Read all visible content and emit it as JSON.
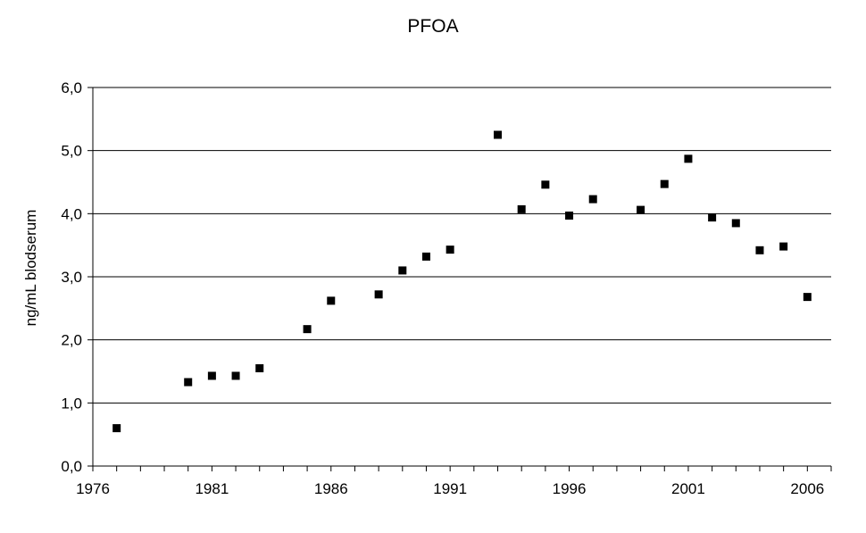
{
  "chart_data": {
    "type": "scatter",
    "title": "PFOA",
    "xlabel": "",
    "ylabel": "ng/mL  blodserum",
    "xlim": [
      1976,
      2007
    ],
    "ylim": [
      0,
      6
    ],
    "x_ticks": [
      1976,
      1981,
      1986,
      1991,
      1996,
      2001,
      2006
    ],
    "x_tick_labels": [
      "1976",
      "1981",
      "1986",
      "1991",
      "1996",
      "2001",
      "2006"
    ],
    "y_ticks": [
      0,
      1,
      2,
      3,
      4,
      5,
      6
    ],
    "y_tick_labels": [
      "0,0",
      "1,0",
      "2,0",
      "3,0",
      "4,0",
      "5,0",
      "6,0"
    ],
    "grid": "horizontal",
    "legend": "none",
    "marker": "square",
    "marker_color": "#000000",
    "series": [
      {
        "points": [
          {
            "x": 1977,
            "y": 0.6
          },
          {
            "x": 1980,
            "y": 1.33
          },
          {
            "x": 1981,
            "y": 1.43
          },
          {
            "x": 1982,
            "y": 1.43
          },
          {
            "x": 1983,
            "y": 1.55
          },
          {
            "x": 1985,
            "y": 2.17
          },
          {
            "x": 1986,
            "y": 2.62
          },
          {
            "x": 1988,
            "y": 2.72
          },
          {
            "x": 1989,
            "y": 3.1
          },
          {
            "x": 1990,
            "y": 3.32
          },
          {
            "x": 1991,
            "y": 3.43
          },
          {
            "x": 1993,
            "y": 5.25
          },
          {
            "x": 1994,
            "y": 4.07
          },
          {
            "x": 1995,
            "y": 4.46
          },
          {
            "x": 1996,
            "y": 3.97
          },
          {
            "x": 1997,
            "y": 4.23
          },
          {
            "x": 1999,
            "y": 4.06
          },
          {
            "x": 2000,
            "y": 4.47
          },
          {
            "x": 2001,
            "y": 4.87
          },
          {
            "x": 2002,
            "y": 3.94
          },
          {
            "x": 2003,
            "y": 3.85
          },
          {
            "x": 2004,
            "y": 3.42
          },
          {
            "x": 2005,
            "y": 3.48
          },
          {
            "x": 2006,
            "y": 2.68
          }
        ]
      }
    ]
  }
}
